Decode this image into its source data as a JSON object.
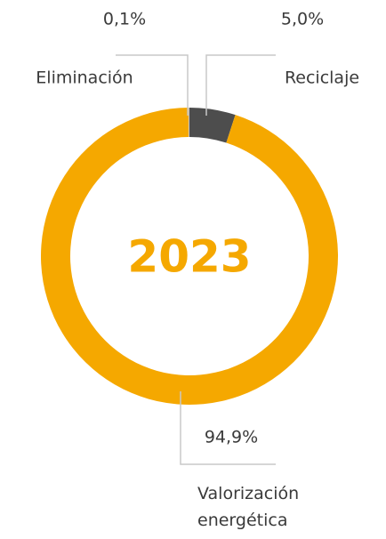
{
  "chart_data": {
    "type": "donut",
    "center_label": "2023",
    "categories": [
      "Reciclaje",
      "Valorización energética",
      "Eliminación"
    ],
    "values": [
      5.0,
      94.9,
      0.1
    ],
    "value_labels": [
      "5,0%",
      "94,9%",
      "0,1%"
    ],
    "colors": [
      "#4d4d4d",
      "#f5a800",
      "#c6c6c6"
    ],
    "center_color": "#f5a800"
  }
}
